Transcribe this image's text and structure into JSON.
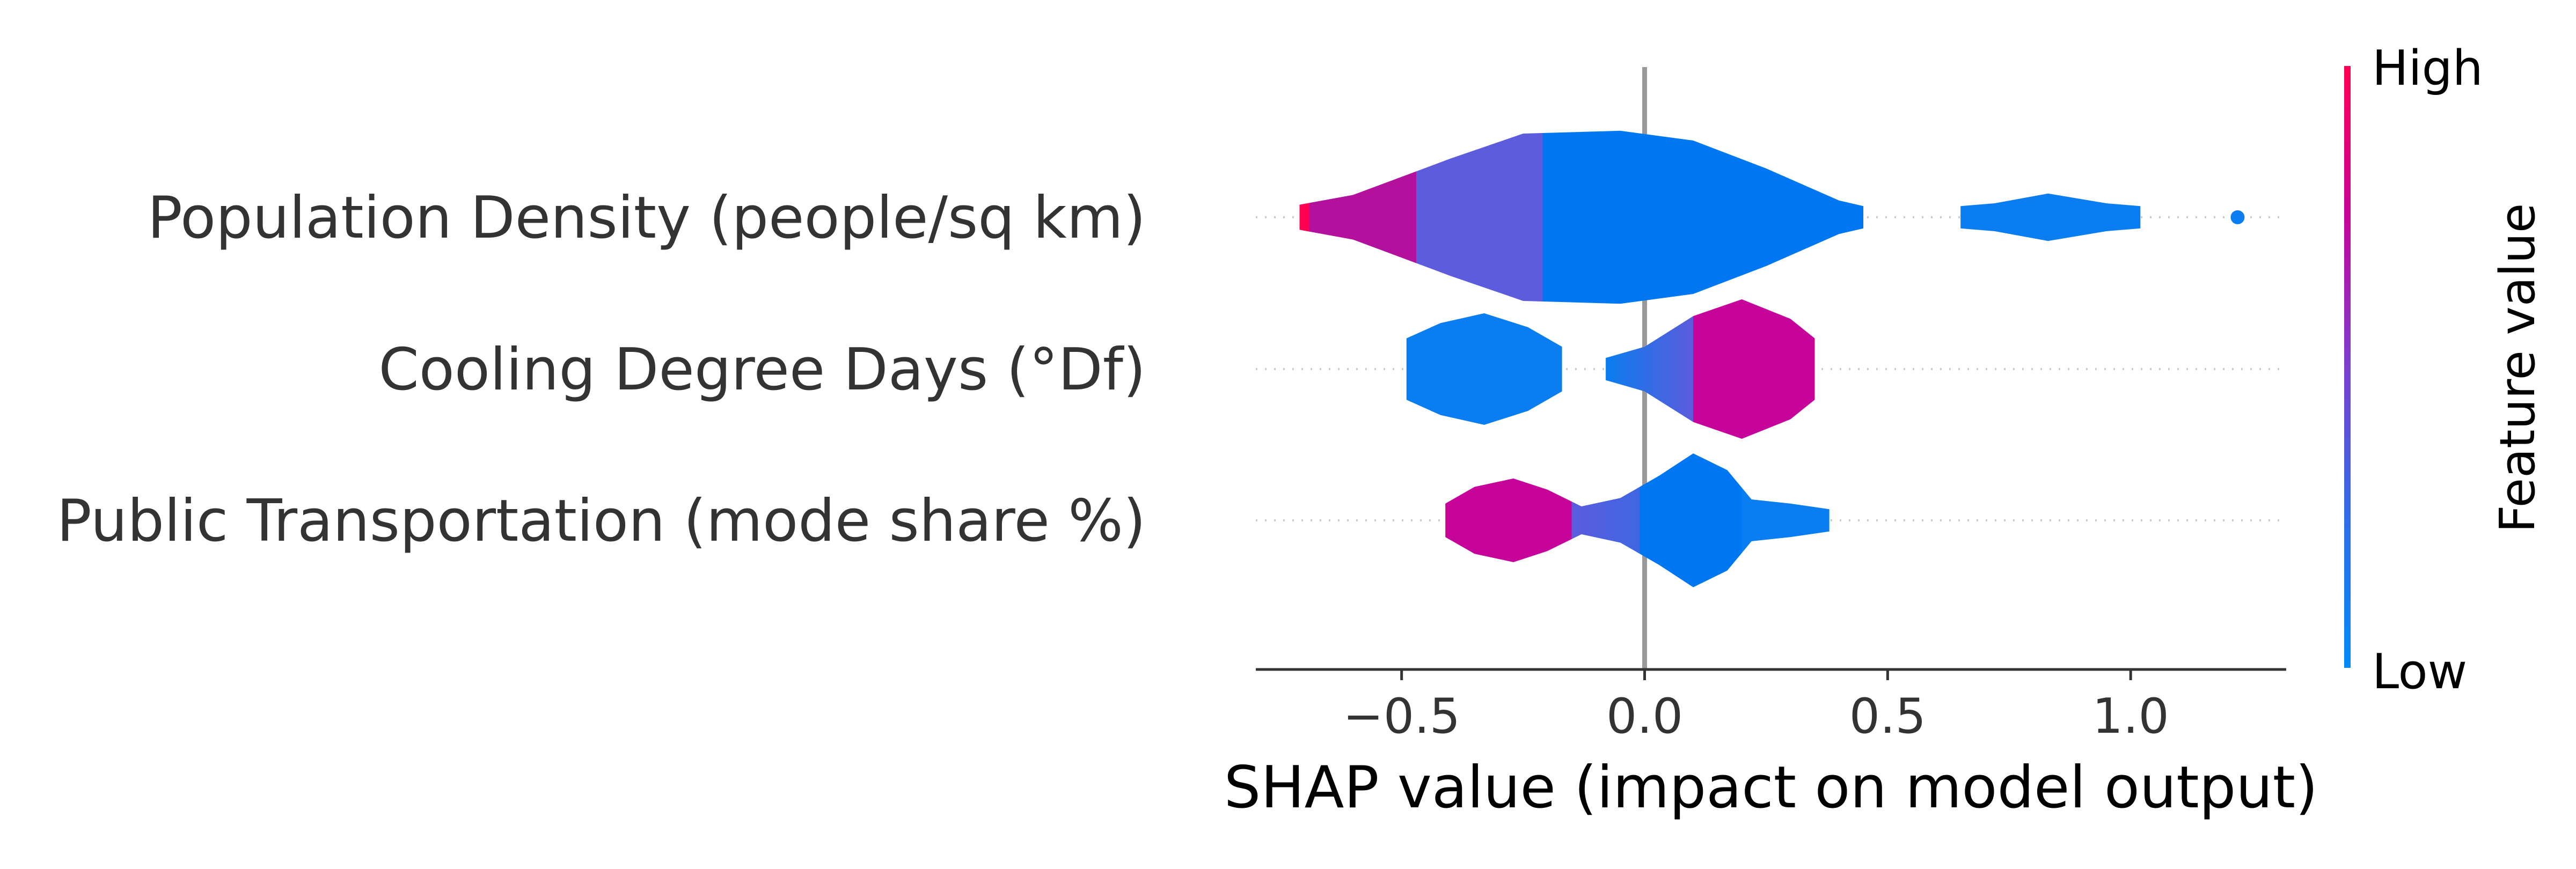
{
  "chart_data": {
    "type": "violin",
    "title": "",
    "xlabel": "SHAP value (impact on model output)",
    "xlim": [
      -0.8,
      1.32
    ],
    "xticks": [
      -0.5,
      0.0,
      0.5,
      1.0
    ],
    "xtick_labels": [
      "−0.5",
      "0.0",
      "0.5",
      "1.0"
    ],
    "reference_line_x": 0.0,
    "features": [
      {
        "name": "Population Density (people/sq km)",
        "segments": [
          {
            "profile": [
              [
                -0.71,
                0.09
              ],
              [
                -0.6,
                0.16
              ],
              [
                -0.4,
                0.42
              ],
              [
                -0.25,
                0.6
              ],
              [
                -0.05,
                0.62
              ],
              [
                0.1,
                0.55
              ],
              [
                0.25,
                0.35
              ],
              [
                0.4,
                0.12
              ],
              [
                0.45,
                0.08
              ]
            ],
            "color_stops": [
              [
                -0.71,
                "#ff0052"
              ],
              [
                -0.69,
                "#ff0052"
              ],
              [
                -0.69,
                "#b3109e"
              ],
              [
                -0.47,
                "#b3109e"
              ],
              [
                -0.47,
                "#5c5cdd"
              ],
              [
                -0.21,
                "#5c5cdd"
              ],
              [
                -0.21,
                "#0077f2"
              ],
              [
                0.45,
                "#0077f2"
              ]
            ]
          },
          {
            "profile": [
              [
                0.65,
                0.08
              ],
              [
                0.72,
                0.1
              ],
              [
                0.83,
                0.17
              ],
              [
                0.95,
                0.1
              ],
              [
                1.02,
                0.08
              ]
            ],
            "color_stops": [
              [
                0.65,
                "#0a7ef0"
              ],
              [
                1.02,
                "#0a7ef0"
              ]
            ]
          }
        ],
        "points": [
          {
            "x": 1.22,
            "color": "#0a7ef0"
          }
        ]
      },
      {
        "name": "Cooling Degree Days (°Df)",
        "segments": [
          {
            "profile": [
              [
                -0.49,
                0.22
              ],
              [
                -0.42,
                0.33
              ],
              [
                -0.33,
                0.4
              ],
              [
                -0.24,
                0.3
              ],
              [
                -0.17,
                0.16
              ]
            ],
            "color_stops": [
              [
                -0.49,
                "#0a7ef0"
              ],
              [
                -0.17,
                "#0a7ef0"
              ]
            ]
          },
          {
            "profile": [
              [
                -0.08,
                0.08
              ],
              [
                0.0,
                0.16
              ],
              [
                0.1,
                0.38
              ],
              [
                0.2,
                0.5
              ],
              [
                0.3,
                0.36
              ],
              [
                0.35,
                0.22
              ]
            ],
            "color_stops": [
              [
                -0.08,
                "#0a7ef0"
              ],
              [
                0.0,
                "#2f6de6"
              ],
              [
                0.1,
                "#5c5cdd"
              ],
              [
                0.1,
                "#c7049a"
              ],
              [
                0.35,
                "#c7049a"
              ]
            ]
          }
        ],
        "points": []
      },
      {
        "name": "Public Transportation (mode share %)",
        "segments": [
          {
            "profile": [
              [
                -0.41,
                0.12
              ],
              [
                -0.35,
                0.24
              ],
              [
                -0.27,
                0.3
              ],
              [
                -0.2,
                0.22
              ],
              [
                -0.13,
                0.1
              ],
              [
                -0.05,
                0.16
              ],
              [
                0.03,
                0.32
              ],
              [
                0.1,
                0.48
              ],
              [
                0.17,
                0.36
              ],
              [
                0.22,
                0.15
              ],
              [
                0.3,
                0.12
              ],
              [
                0.38,
                0.08
              ]
            ],
            "color_stops": [
              [
                -0.41,
                "#c7049a"
              ],
              [
                -0.15,
                "#c7049a"
              ],
              [
                -0.15,
                "#5c5cdd"
              ],
              [
                -0.01,
                "#3f66e2"
              ],
              [
                -0.01,
                "#0077f2"
              ],
              [
                0.2,
                "#0077f2"
              ],
              [
                0.2,
                "#0a7ef0"
              ],
              [
                0.38,
                "#0a7ef0"
              ]
            ]
          }
        ],
        "points": []
      }
    ],
    "colorbar": {
      "label": "Feature value",
      "high_label": "High",
      "low_label": "Low",
      "colors": [
        "#ff0052",
        "#c7049a",
        "#7b3fd0",
        "#2f6de6",
        "#008bfb"
      ]
    }
  }
}
